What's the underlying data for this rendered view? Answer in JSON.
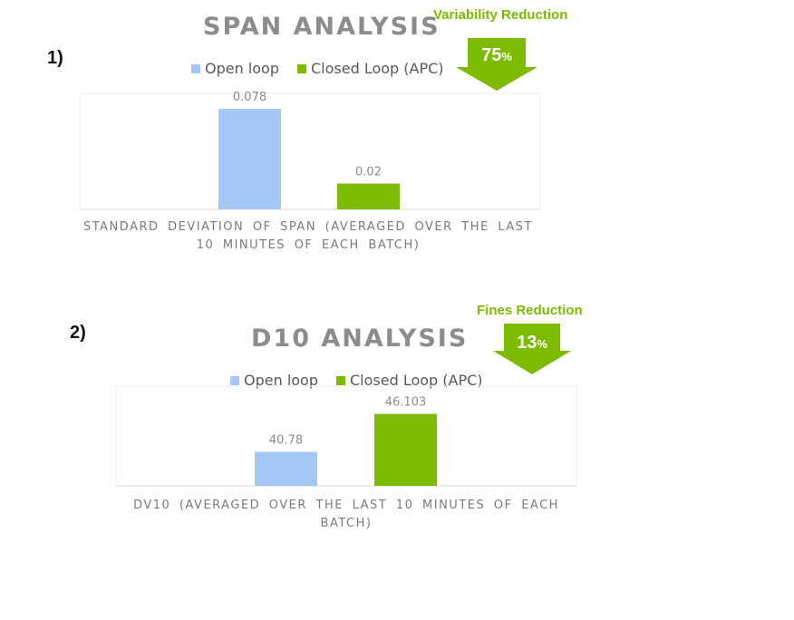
{
  "colors": {
    "open": "#a4c8f6",
    "closed": "#7cbb00",
    "accent": "#7cbb00",
    "title": "#8c8c8c"
  },
  "chart_data": [
    {
      "type": "bar",
      "index_label": "1)",
      "title": "SPAN ANALYSIS",
      "xlabel": "STANDARD DEVIATION OF SPAN (AVERAGED OVER THE LAST 10 MINUTES OF EACH BATCH)",
      "ylabel": "",
      "legend": "top",
      "grid": false,
      "ylim": [
        0,
        0.09
      ],
      "series": [
        {
          "name": "Open loop",
          "values": [
            0.078
          ],
          "labels": [
            "0.078"
          ]
        },
        {
          "name": "Closed Loop (APC)",
          "values": [
            0.02
          ],
          "labels": [
            "0.02"
          ]
        }
      ],
      "callout": {
        "label": "Variability Reduction",
        "value": "75",
        "unit": "%"
      }
    },
    {
      "type": "bar",
      "index_label": "2)",
      "title": "D10 ANALYSIS",
      "xlabel": "DV10 (AVERAGED OVER THE LAST 10 MINUTES OF EACH BATCH)",
      "ylabel": "",
      "legend": "top",
      "grid": false,
      "ylim": [
        36,
        50
      ],
      "series": [
        {
          "name": "Open loop",
          "values": [
            40.78
          ],
          "labels": [
            "40.78"
          ]
        },
        {
          "name": "Closed Loop (APC)",
          "values": [
            46.103
          ],
          "labels": [
            "46.103"
          ]
        }
      ],
      "callout": {
        "label": "Fines Reduction",
        "value": "13",
        "unit": "%"
      }
    }
  ]
}
